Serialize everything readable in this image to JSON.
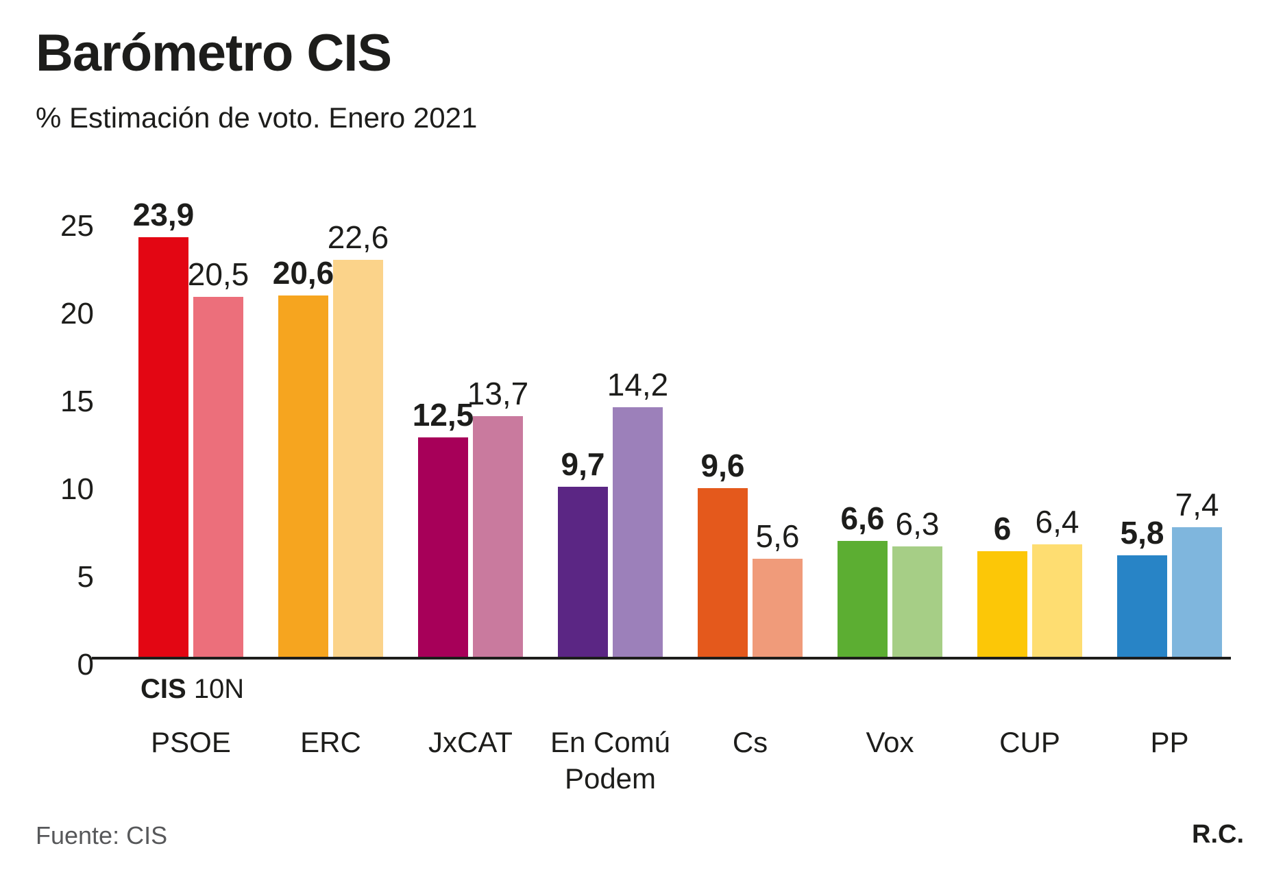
{
  "title": "Barómetro CIS",
  "subtitle": "% Estimación de voto. Enero 2021",
  "legend": {
    "cis_label": "CIS",
    "n10_label": "10N"
  },
  "footer": {
    "source": "Fuente: CIS",
    "credit": "R.C."
  },
  "colors": {
    "text": "#1d1d1b",
    "muted_text": "#57585a",
    "axis": "#1d1d1b",
    "background": "#ffffff"
  },
  "chart_data": {
    "type": "bar",
    "title": "Barómetro CIS",
    "subtitle": "% Estimación de voto. Enero 2021",
    "xlabel": "",
    "ylabel": "% Estimación de voto",
    "ylim": [
      0,
      25
    ],
    "yticks": [
      0,
      5,
      10,
      15,
      20,
      25
    ],
    "grid": false,
    "legend_position": "below-first-group",
    "categories": [
      "PSOE",
      "ERC",
      "JxCAT",
      "En Comú Podem",
      "Cs",
      "Vox",
      "CUP",
      "PP"
    ],
    "series": [
      {
        "name": "CIS",
        "values": [
          23.9,
          20.6,
          12.5,
          9.7,
          9.6,
          6.6,
          6,
          5.8
        ],
        "value_labels": [
          "23,9",
          "20,6",
          "12,5",
          "9,7",
          "9,6",
          "6,6",
          "6",
          "5,8"
        ],
        "colors": [
          "#e30613",
          "#f6a51f",
          "#a70059",
          "#5b2684",
          "#e4591c",
          "#5cae32",
          "#fcc707",
          "#2884c6"
        ]
      },
      {
        "name": "10N",
        "values": [
          20.5,
          22.6,
          13.7,
          14.2,
          5.6,
          6.3,
          6.4,
          7.4
        ],
        "value_labels": [
          "20,5",
          "22,6",
          "13,7",
          "14,2",
          "5,6",
          "6,3",
          "6,4",
          "7,4"
        ],
        "colors": [
          "#ec6f7b",
          "#fbd38a",
          "#c97a9e",
          "#9c80ba",
          "#f09b7a",
          "#a6ce86",
          "#fedd71",
          "#7fb6dd"
        ]
      }
    ]
  }
}
